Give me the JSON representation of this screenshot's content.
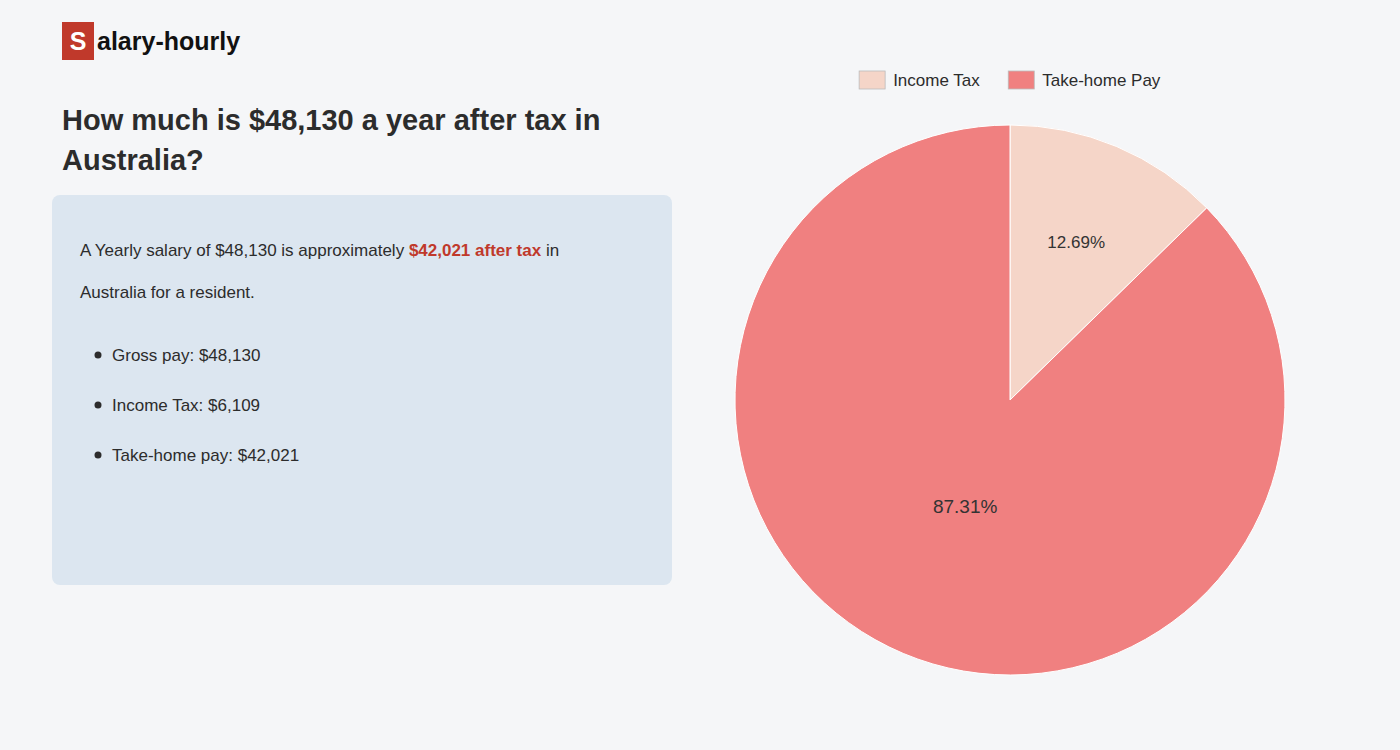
{
  "chart_data": {
    "type": "pie",
    "annotations": [
      "S",
      "alary-hourly",
      "How much is $48,130 a year after tax in",
      "Australia?",
      "A Yearly salary of $48,130 is approximately ",
      "$42,021 after tax",
      " in",
      "Australia for a resident.",
      "Gross pay: $48,130",
      "Income Tax: $6,109",
      "Take-home pay: $42,021"
    ],
    "categories": [
      "Income Tax",
      "Take-home Pay"
    ],
    "values": [
      12.69,
      87.31
    ],
    "value_labels": [
      "12.69%",
      "87.31%"
    ],
    "colors": [
      "#f5d5c8",
      "#f08080"
    ],
    "data_labels": true,
    "legend": "top"
  }
}
